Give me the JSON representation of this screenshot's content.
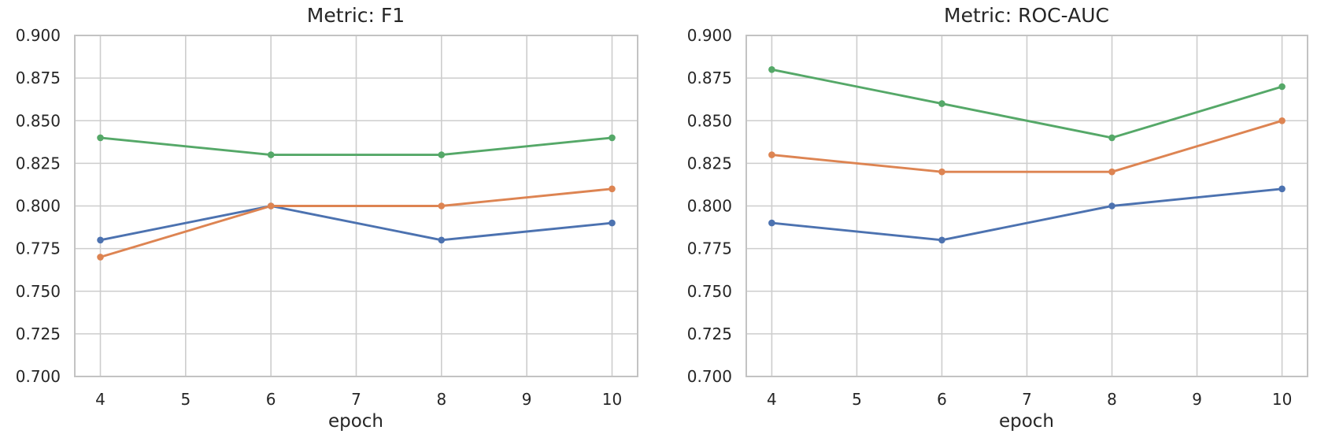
{
  "figure": {
    "background_color": "#ffffff",
    "text_color": "#262626",
    "grid_color": "#cdcdcd",
    "spine_color": "#c3c3c3",
    "palette": {
      "blue": "#4C72B0",
      "orange": "#DD8452",
      "green": "#55A868"
    }
  },
  "chart_data": [
    {
      "type": "line",
      "title": "Metric: F1",
      "xlabel": "epoch",
      "ylabel": "",
      "x": [
        4,
        6,
        8,
        10
      ],
      "xticks": [
        4,
        5,
        6,
        7,
        8,
        9,
        10
      ],
      "ytick_labels": [
        "0.700",
        "0.725",
        "0.750",
        "0.775",
        "0.800",
        "0.825",
        "0.850",
        "0.875",
        "0.900"
      ],
      "xlim": [
        3.7,
        10.3
      ],
      "ylim": [
        0.7,
        0.9
      ],
      "grid": true,
      "legend_position": "none",
      "series": [
        {
          "name": "blue",
          "color": "#4C72B0",
          "values": [
            0.78,
            0.8,
            0.78,
            0.79
          ]
        },
        {
          "name": "orange",
          "color": "#DD8452",
          "values": [
            0.77,
            0.8,
            0.8,
            0.81
          ]
        },
        {
          "name": "green",
          "color": "#55A868",
          "values": [
            0.84,
            0.83,
            0.83,
            0.84
          ]
        }
      ]
    },
    {
      "type": "line",
      "title": "Metric: ROC-AUC",
      "xlabel": "epoch",
      "ylabel": "",
      "x": [
        4,
        6,
        8,
        10
      ],
      "xticks": [
        4,
        5,
        6,
        7,
        8,
        9,
        10
      ],
      "ytick_labels": [
        "0.700",
        "0.725",
        "0.750",
        "0.775",
        "0.800",
        "0.825",
        "0.850",
        "0.875",
        "0.900"
      ],
      "xlim": [
        3.7,
        10.3
      ],
      "ylim": [
        0.7,
        0.9
      ],
      "grid": true,
      "legend_position": "none",
      "series": [
        {
          "name": "blue",
          "color": "#4C72B0",
          "values": [
            0.79,
            0.78,
            0.8,
            0.81
          ]
        },
        {
          "name": "orange",
          "color": "#DD8452",
          "values": [
            0.83,
            0.82,
            0.82,
            0.85
          ]
        },
        {
          "name": "green",
          "color": "#55A868",
          "values": [
            0.88,
            0.86,
            0.84,
            0.87
          ]
        }
      ]
    }
  ]
}
